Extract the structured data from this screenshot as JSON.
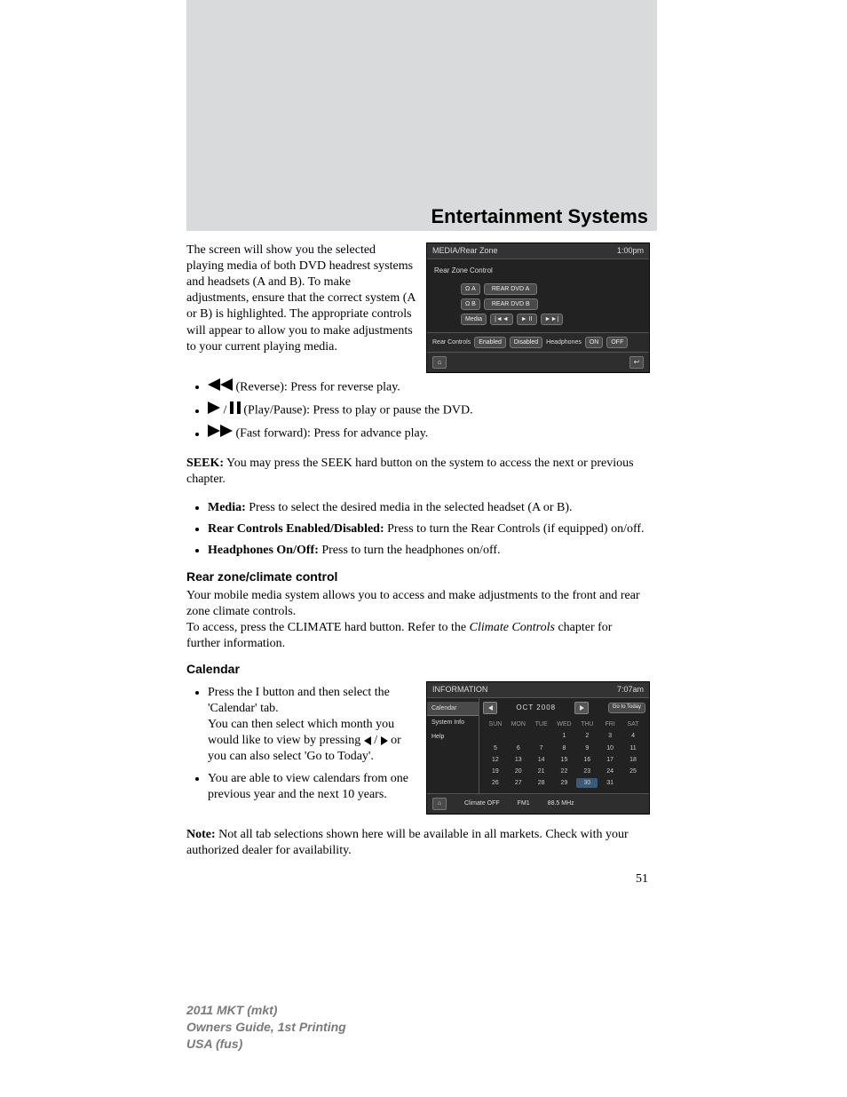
{
  "section_title": "Entertainment Systems",
  "intro_para": "The screen will show you the selected playing media of both DVD headrest systems and headsets (A and B). To make adjustments, ensure that the correct system (A or B) is highlighted. The appropriate controls will appear to allow you to make adjustments to your current playing media.",
  "media_ss": {
    "header_left": "MEDIA/Rear Zone",
    "header_right": "1:00pm",
    "subtitle": "Rear Zone Control",
    "row_a_label": "REAR DVD A",
    "row_b_label": "REAR DVD B",
    "media_btn": "Media",
    "bottom_label": "Rear Controls",
    "enabled": "Enabled",
    "disabled": "Disabled",
    "headphones": "Headphones",
    "on": "ON",
    "off": "OFF"
  },
  "btn_bullets": {
    "reverse": " (Reverse): Press for reverse play.",
    "playpause": " (Play/Pause): Press to play or pause the DVD.",
    "ff": " (Fast forward): Press for advance play."
  },
  "seek_label": "SEEK:",
  "seek_text": " You may press the SEEK hard button on the system to access the next or previous chapter.",
  "media_bullets": {
    "media_label": "Media:",
    "media_text": " Press to select the desired media in the selected headset (A or B).",
    "rc_label": "Rear Controls Enabled/Disabled:",
    "rc_text": " Press to turn the Rear Controls (if equipped) on/off.",
    "hp_label": "Headphones On/Off:",
    "hp_text": " Press to turn the headphones on/off."
  },
  "rear_zone_heading": "Rear zone/climate control",
  "rear_zone_p1": "Your mobile media system allows you to access and make adjustments to the front and rear zone climate controls.",
  "rear_zone_p2a": "To access, press the CLIMATE hard button. Refer to the ",
  "rear_zone_p2b": "Climate Controls",
  "rear_zone_p2c": " chapter for further information.",
  "calendar_heading": "Calendar",
  "calendar_bullets": {
    "b1a": "Press the I button and then select the 'Calendar' tab.",
    "b1b": "You can then select which month you would like to view by pressing ",
    "b1c": " or you can also select 'Go to Today'.",
    "b2": "You are able to view calendars from one previous year and the next 10 years."
  },
  "cal_ss": {
    "header_left": "INFORMATION",
    "header_right": "7:07am",
    "side": {
      "calendar": "Calendar",
      "sysinfo": "System Info",
      "help": "Help"
    },
    "month": "OCT 2008",
    "go_today": "Go to Today",
    "days": [
      "SUN",
      "MON",
      "TUE",
      "WED",
      "THU",
      "FRI",
      "SAT"
    ],
    "weeks": [
      [
        "",
        "",
        "",
        "1",
        "2",
        "3",
        "4"
      ],
      [
        "5",
        "6",
        "7",
        "8",
        "9",
        "10",
        "11"
      ],
      [
        "12",
        "13",
        "14",
        "15",
        "16",
        "17",
        "18"
      ],
      [
        "19",
        "20",
        "21",
        "22",
        "23",
        "24",
        "25"
      ],
      [
        "26",
        "27",
        "28",
        "29",
        "30",
        "31",
        ""
      ]
    ],
    "active_day": "30",
    "footer_climate": "Climate OFF",
    "footer_fm": "FM1",
    "footer_freq": "88.5 MHz"
  },
  "note_label": "Note:",
  "note_text": " Not all tab selections shown here will be available in all markets. Check with your authorized dealer for availability.",
  "page_number": "51",
  "footer": {
    "l1a": "2011 MKT ",
    "l1b": "(mkt)",
    "l2": "Owners Guide, 1st Printing",
    "l3a": "USA ",
    "l3b": "(fus)"
  }
}
